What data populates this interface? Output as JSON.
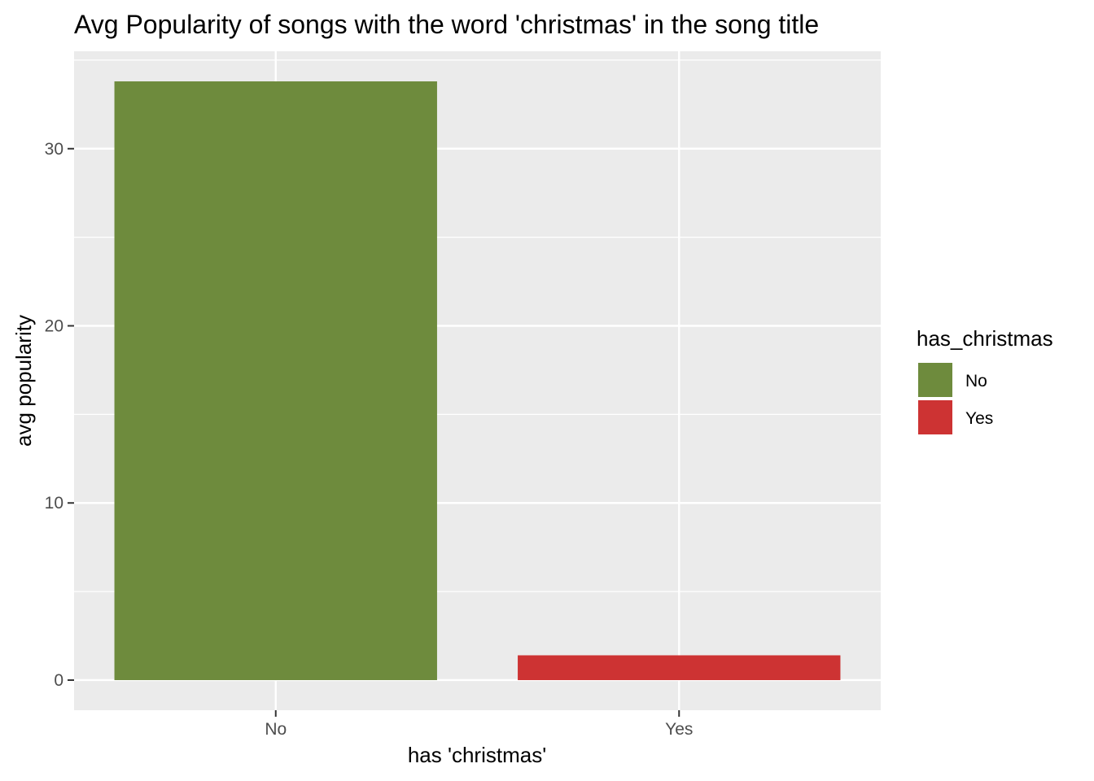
{
  "chart_data": {
    "type": "bar",
    "title": "Avg Popularity of songs with the word 'christmas' in the song title",
    "xlabel": "has 'christmas'",
    "ylabel": "avg popularity",
    "categories": [
      "No",
      "Yes"
    ],
    "values": [
      33.8,
      1.4
    ],
    "colors": [
      "#6e8b3d",
      "#cd3333"
    ],
    "ylim": [
      -1.7,
      35.5
    ],
    "yticks": [
      0,
      10,
      20,
      30
    ],
    "grid": true,
    "panel_background": "#ebebeb",
    "legend": {
      "title": "has_christmas",
      "position": "right",
      "entries": [
        "No",
        "Yes"
      ]
    }
  }
}
